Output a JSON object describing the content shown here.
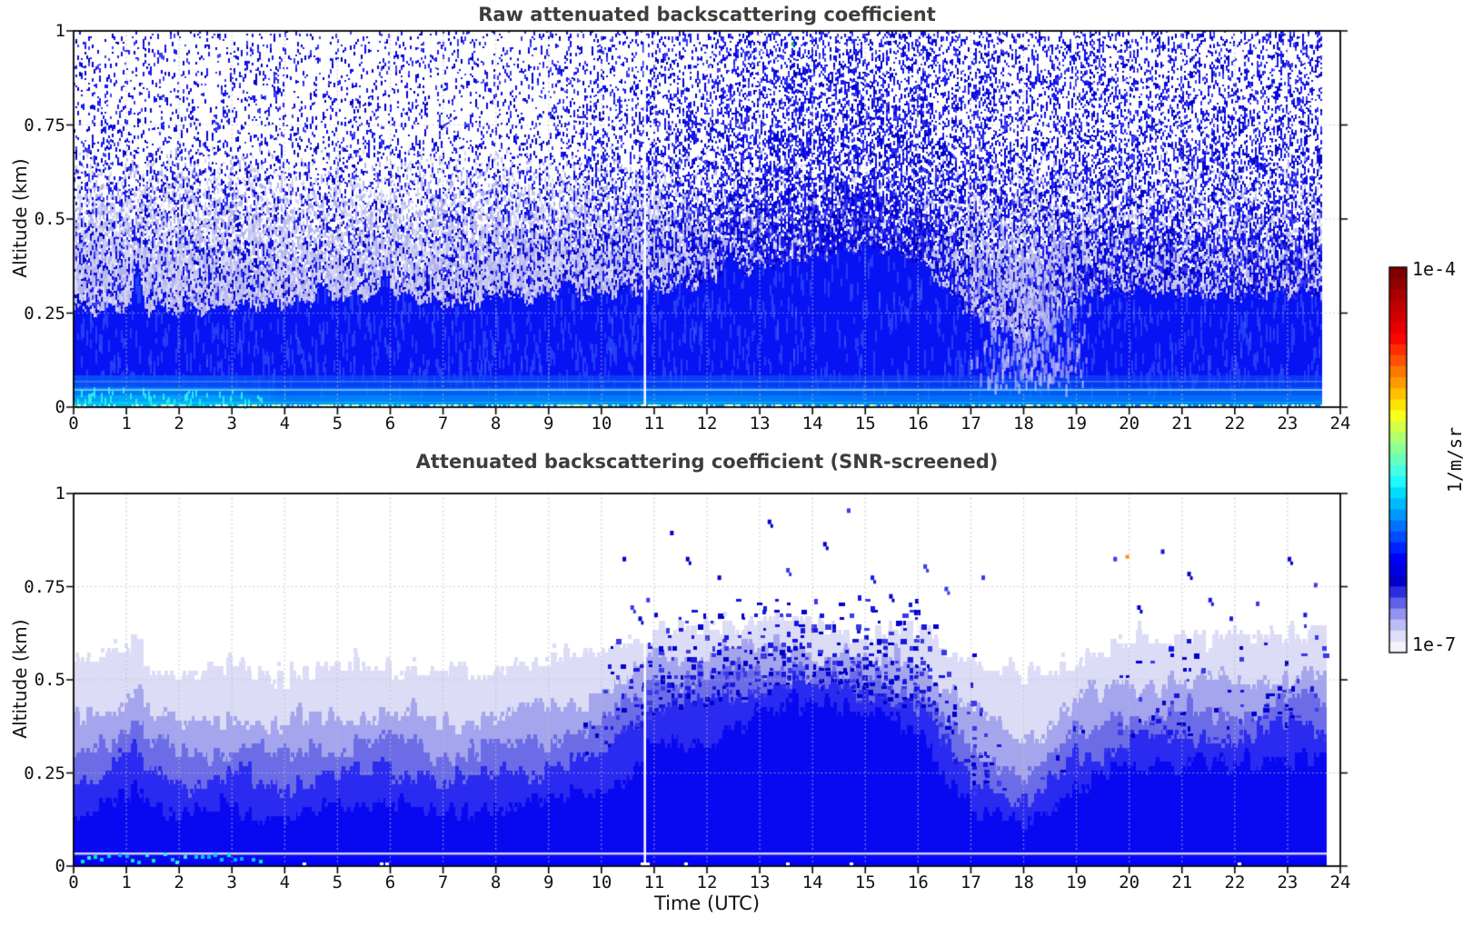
{
  "figure": {
    "background": "#ffffff",
    "frame_color": "#000000",
    "grid_color": "rgba(190,190,198,0.9)"
  },
  "axis": {
    "x_label": "Time (UTC)",
    "y_label": "Altitude (km)",
    "x_ticks": [
      "0",
      "1",
      "2",
      "3",
      "4",
      "5",
      "6",
      "7",
      "8",
      "9",
      "10",
      "11",
      "12",
      "13",
      "14",
      "15",
      "16",
      "17",
      "18",
      "19",
      "20",
      "21",
      "22",
      "23",
      "24"
    ],
    "x_tick_values": [
      0,
      1,
      2,
      3,
      4,
      5,
      6,
      7,
      8,
      9,
      10,
      11,
      12,
      13,
      14,
      15,
      16,
      17,
      18,
      19,
      20,
      21,
      22,
      23,
      24
    ],
    "y_ticks": [
      "1",
      "0.75",
      "0.5",
      "0.25",
      "0"
    ],
    "y_tick_values": [
      1,
      0.75,
      0.5,
      0.25,
      0
    ]
  },
  "colorbar": {
    "top_label": "1e-4",
    "bottom_label": "1e-7",
    "unit_label": "1/m/sr",
    "scale": "log",
    "vmin": 1e-07,
    "vmax": 0.0001,
    "colors": [
      "#7f0000",
      "#930000",
      "#a80000",
      "#bd0000",
      "#d10000",
      "#e60000",
      "#fa0500",
      "#ff2d00",
      "#ff5200",
      "#ff7700",
      "#ff9b00",
      "#ffc000",
      "#ffe400",
      "#f8ff1e",
      "#d4ff46",
      "#b0ff6e",
      "#8cff96",
      "#68ffbe",
      "#44ffe6",
      "#1ef8ff",
      "#00dcff",
      "#00baff",
      "#0098ff",
      "#0071ff",
      "#004aff",
      "#0023ff",
      "#0000fa",
      "#0000e1",
      "#0000c8",
      "#2d2ddd",
      "#6060e8",
      "#9292f0",
      "#bcbcf6",
      "#dedefa",
      "#f3f3fd"
    ]
  },
  "chart_data": [
    {
      "type": "heatmap",
      "title": "Raw attenuated backscattering coefficient",
      "xlabel": "Time (UTC)",
      "ylabel": "Altitude (km)",
      "xlim": [
        0,
        24
      ],
      "ylim": [
        0,
        1
      ],
      "grid": "dotted",
      "data_end_utc": 23.65,
      "gap_utc": 10.82,
      "hour_points": [
        0,
        1,
        2,
        3,
        4,
        5,
        6,
        7,
        8,
        9,
        10,
        11,
        12,
        13,
        14,
        15,
        16,
        17,
        18,
        19,
        20,
        21,
        22,
        23,
        24
      ],
      "solid_top_km": [
        0.255,
        0.265,
        0.255,
        0.265,
        0.275,
        0.295,
        0.3,
        0.27,
        0.28,
        0.295,
        0.3,
        0.31,
        0.33,
        0.37,
        0.4,
        0.43,
        0.39,
        0.24,
        0.18,
        0.29,
        0.31,
        0.3,
        0.295,
        0.3,
        0.3
      ],
      "noise_density": [
        0.26,
        0.26,
        0.25,
        0.25,
        0.24,
        0.23,
        0.24,
        0.25,
        0.27,
        0.3,
        0.36,
        0.44,
        0.52,
        0.62,
        0.66,
        0.68,
        0.64,
        0.54,
        0.46,
        0.52,
        0.5,
        0.48,
        0.5,
        0.53,
        0.53
      ],
      "fog_density": [
        1.0,
        1.0,
        0.95,
        0.95,
        0.9,
        0.85,
        0.85,
        0.9,
        0.95,
        0.95,
        0.9,
        0.8,
        0.6,
        0.35,
        0.3,
        0.3,
        0.35,
        0.5,
        0.6,
        0.55,
        0.5,
        0.5,
        0.45,
        0.4,
        0.4
      ],
      "surface_intensity": [
        0.9,
        0.95,
        0.9,
        0.85,
        0.5,
        0.55,
        0.6,
        0.45,
        0.5,
        0.55,
        0.5,
        0.5,
        0.55,
        0.5,
        0.45,
        0.4,
        0.35,
        0.4,
        0.45,
        0.4,
        0.35,
        0.35,
        0.35,
        0.4,
        0.4
      ],
      "spikes": [
        {
          "t": 1.2,
          "dz": 0.115,
          "w": 0.09
        },
        {
          "t": 4.65,
          "dz": 0.045,
          "w": 0.1
        },
        {
          "t": 5.9,
          "dz": 0.05,
          "w": 0.12
        },
        {
          "t": 8.1,
          "dz": 0.03,
          "w": 0.18
        },
        {
          "t": 9.3,
          "dz": 0.035,
          "w": 0.15
        },
        {
          "t": 12.4,
          "dz": 0.05,
          "w": 0.2
        }
      ],
      "light_wedge": {
        "t0": 16.9,
        "t1": 19.35,
        "z0": 0.06,
        "z1": 0.46
      },
      "special_points": [
        {
          "t": 13.6,
          "z": 0.97,
          "color": "#00c864"
        }
      ],
      "palette": {
        "solid": "#0813f4",
        "noise_dark": [
          "#0a0ae8",
          "#3d3df2",
          "#0000c2",
          "#1a1af0"
        ],
        "noise_light": [
          "#dadaf7",
          "#c4c4f2",
          "#b2b2ee"
        ],
        "surface": [
          "#0a52f7",
          "#0087fa",
          "#00b4f8",
          "#00d2f0"
        ],
        "surface_speckle": [
          "#ffffff",
          "#aef7e4",
          "#62f7c8",
          "#d6fff2",
          "#fdfda0"
        ],
        "cyan_line": "rgba(130,220,255,0.75)"
      }
    },
    {
      "type": "heatmap",
      "title": "Attenuated backscattering coefficient (SNR-screened)",
      "xlabel": "Time (UTC)",
      "ylabel": "Altitude (km)",
      "xlim": [
        0,
        24
      ],
      "ylim": [
        0,
        1
      ],
      "grid": "dotted",
      "data_end_utc": 23.65,
      "gap_utc": 10.82,
      "hour_points": [
        0,
        1,
        2,
        3,
        4,
        5,
        6,
        7,
        8,
        9,
        10,
        11,
        12,
        13,
        14,
        15,
        16,
        17,
        18,
        19,
        20,
        21,
        22,
        23,
        24
      ],
      "levels": [
        {
          "color": "#dcdcf6",
          "alt": [
            0.53,
            0.56,
            0.51,
            0.53,
            0.51,
            0.53,
            0.54,
            0.51,
            0.52,
            0.54,
            0.58,
            0.63,
            0.64,
            0.66,
            0.64,
            0.62,
            0.63,
            0.55,
            0.5,
            0.56,
            0.59,
            0.61,
            0.6,
            0.63,
            0.63
          ]
        },
        {
          "color": "#a5a5ed",
          "alt": [
            0.38,
            0.45,
            0.38,
            0.4,
            0.38,
            0.4,
            0.42,
            0.38,
            0.4,
            0.42,
            0.47,
            0.56,
            0.56,
            0.59,
            0.58,
            0.56,
            0.55,
            0.42,
            0.34,
            0.45,
            0.48,
            0.5,
            0.48,
            0.52,
            0.52
          ]
        },
        {
          "color": "#6c6ce7",
          "alt": [
            0.3,
            0.37,
            0.3,
            0.32,
            0.3,
            0.32,
            0.34,
            0.3,
            0.32,
            0.33,
            0.38,
            0.5,
            0.51,
            0.53,
            0.53,
            0.51,
            0.48,
            0.32,
            0.24,
            0.36,
            0.4,
            0.42,
            0.4,
            0.45,
            0.45
          ]
        },
        {
          "color": "#2a2af0",
          "alt": [
            0.22,
            0.29,
            0.22,
            0.24,
            0.22,
            0.24,
            0.26,
            0.23,
            0.25,
            0.26,
            0.31,
            0.43,
            0.45,
            0.47,
            0.49,
            0.47,
            0.42,
            0.24,
            0.16,
            0.3,
            0.34,
            0.36,
            0.34,
            0.38,
            0.38
          ]
        },
        {
          "color": "#0909f1",
          "alt": [
            0.13,
            0.19,
            0.13,
            0.15,
            0.13,
            0.15,
            0.17,
            0.14,
            0.15,
            0.17,
            0.21,
            0.31,
            0.34,
            0.4,
            0.44,
            0.42,
            0.34,
            0.16,
            0.09,
            0.23,
            0.26,
            0.28,
            0.26,
            0.3,
            0.3
          ]
        }
      ],
      "plume_top": [
        0,
        0,
        0,
        0,
        0,
        0,
        0,
        0,
        0,
        0,
        0.6,
        0.72,
        0.72,
        0.74,
        0.73,
        0.74,
        0.72,
        0.6,
        0.2,
        0.45,
        0.6,
        0.65,
        0.62,
        0.7,
        0.7
      ],
      "speckle_density": [
        0,
        0,
        0,
        0,
        0,
        0,
        0,
        0,
        0,
        0,
        0.25,
        0.55,
        0.55,
        0.6,
        0.58,
        0.6,
        0.55,
        0.35,
        0.05,
        0.1,
        0.18,
        0.2,
        0.18,
        0.22,
        0.22
      ],
      "spikes": [
        {
          "t": 1.2,
          "dz": 0.07,
          "w": 0.1
        }
      ],
      "high_speckles": [
        [
          10.4,
          0.83
        ],
        [
          10.55,
          0.7
        ],
        [
          10.7,
          0.67
        ],
        [
          10.85,
          0.72
        ],
        [
          11.0,
          0.68
        ],
        [
          11.3,
          0.9
        ],
        [
          11.6,
          0.83
        ],
        [
          12.2,
          0.78
        ],
        [
          13.15,
          0.93
        ],
        [
          13.5,
          0.8
        ],
        [
          14.2,
          0.87
        ],
        [
          14.65,
          0.96
        ],
        [
          15.1,
          0.78
        ],
        [
          15.45,
          0.73
        ],
        [
          16.1,
          0.81
        ],
        [
          16.5,
          0.75
        ],
        [
          17.2,
          0.78
        ],
        [
          19.7,
          0.83
        ],
        [
          20.15,
          0.7
        ],
        [
          20.6,
          0.85
        ],
        [
          21.1,
          0.79
        ],
        [
          21.5,
          0.72
        ],
        [
          21.9,
          0.67
        ],
        [
          22.4,
          0.71
        ],
        [
          23.0,
          0.83
        ],
        [
          23.3,
          0.68
        ],
        [
          23.5,
          0.76
        ]
      ],
      "special_points": [
        {
          "t": 19.93,
          "z": 0.835,
          "color": "#ff8c00"
        }
      ],
      "palette": {
        "plume": [
          "#0000cd",
          "#1717e2",
          "#3a3aea"
        ],
        "bottom": "#0301fa",
        "surface_cyan": [
          "#00cdff",
          "#2af0e0",
          "#00b0ff",
          "#00f2a0"
        ],
        "light_stripe": "rgba(228,228,250,0.9)"
      }
    }
  ]
}
